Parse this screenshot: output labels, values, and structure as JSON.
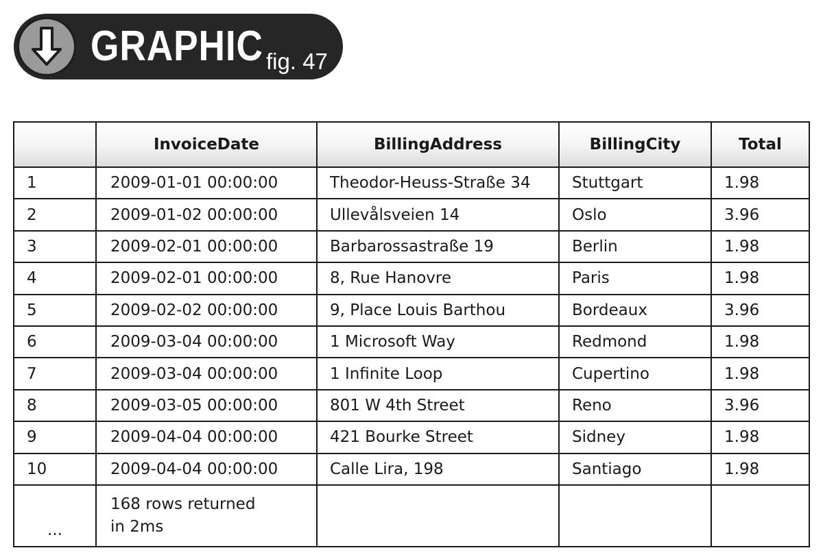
{
  "header": {
    "icon": "arrow-down-icon",
    "word": "GRAPHIC",
    "figure_label": "fig. 47"
  },
  "table": {
    "columns": [
      "",
      "InvoiceDate",
      "BillingAddress",
      "BillingCity",
      "Total"
    ],
    "rows": [
      {
        "n": "1",
        "date": "2009-01-01  00:00:00",
        "address": "Theodor-Heuss-Straße 34",
        "city": "Stuttgart",
        "total": "1.98"
      },
      {
        "n": "2",
        "date": "2009-01-02  00:00:00",
        "address": "Ullevålsveien 14",
        "city": "Oslo",
        "total": "3.96"
      },
      {
        "n": "3",
        "date": "2009-02-01  00:00:00",
        "address": "Barbarossastraße 19",
        "city": "Berlin",
        "total": "1.98"
      },
      {
        "n": "4",
        "date": "2009-02-01  00:00:00",
        "address": "8, Rue Hanovre",
        "city": "Paris",
        "total": "1.98"
      },
      {
        "n": "5",
        "date": "2009-02-02  00:00:00",
        "address": "9, Place Louis Barthou",
        "city": "Bordeaux",
        "total": "3.96"
      },
      {
        "n": "6",
        "date": "2009-03-04  00:00:00",
        "address": "1 Microsoft Way",
        "city": "Redmond",
        "total": "1.98"
      },
      {
        "n": "7",
        "date": "2009-03-04  00:00:00",
        "address": "1 Infinite Loop",
        "city": "Cupertino",
        "total": "1.98"
      },
      {
        "n": "8",
        "date": "2009-03-05  00:00:00",
        "address": "801 W 4th Street",
        "city": "Reno",
        "total": "3.96"
      },
      {
        "n": "9",
        "date": "2009-04-04  00:00:00",
        "address": "421 Bourke Street",
        "city": "Sidney",
        "total": "1.98"
      },
      {
        "n": "10",
        "date": "2009-04-04  00:00:00",
        "address": "Calle Lira, 198",
        "city": "Santiago",
        "total": "1.98"
      }
    ],
    "ellipsis": "...",
    "summary_line1": "168 rows returned",
    "summary_line2": "in 2ms"
  },
  "colors": {
    "badge_background": "#262626",
    "badge_circle": "#9a9a9a",
    "grid_lines": "#1a1a1a"
  }
}
